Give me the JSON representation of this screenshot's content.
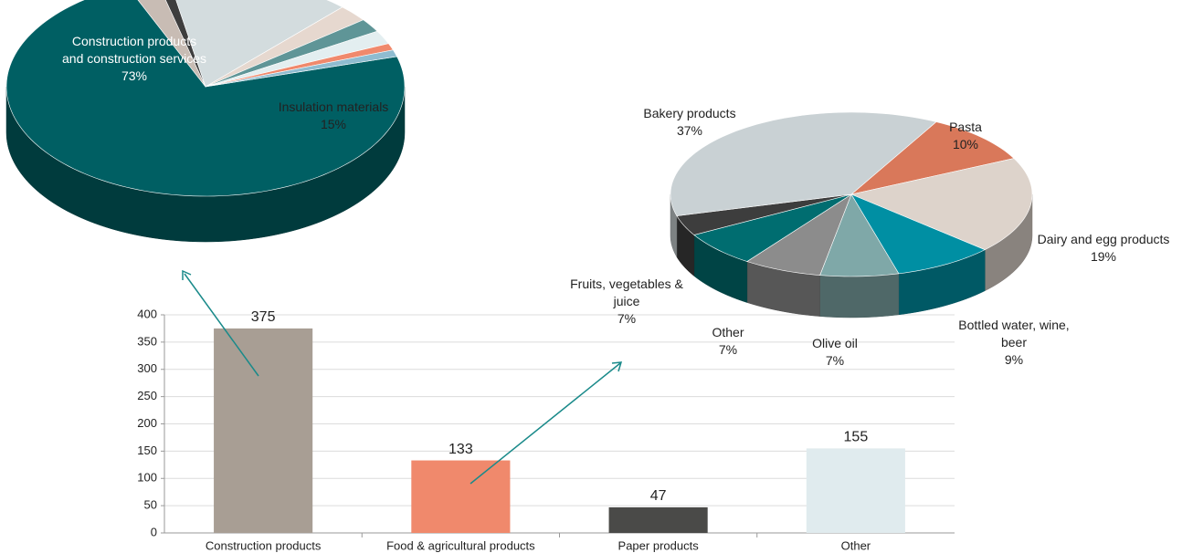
{
  "chart_data": [
    {
      "type": "bar",
      "categories": [
        "Construction products",
        "Food & agricultural products",
        "Paper products",
        "Other"
      ],
      "values": [
        375,
        133,
        47,
        155
      ],
      "colors": [
        "#a89e94",
        "#f0896c",
        "#4a4a48",
        "#e0ebee"
      ],
      "ylim": [
        0,
        400
      ],
      "yticks": [
        0,
        50,
        100,
        150,
        200,
        250,
        300,
        350,
        400
      ],
      "grid": true
    },
    {
      "type": "pie3d",
      "categories": [
        "Construction products and construction services",
        null,
        null,
        "Insulation materials",
        null,
        null,
        null,
        null,
        null
      ],
      "values": [
        73,
        2.5,
        1,
        15,
        2.5,
        2,
        2,
        1,
        1
      ],
      "value_labels": [
        "73%",
        null,
        null,
        "15%",
        null,
        null,
        null,
        null,
        null
      ],
      "colors": [
        "#005f63",
        "#c8bcb4",
        "#3e3e3e",
        "#d3dcde",
        "#e6d8cf",
        "#5f9597",
        "#e3eef0",
        "#f0896c",
        "#8fbcd0"
      ]
    },
    {
      "type": "pie3d",
      "categories": [
        "Pasta",
        "Dairy and egg products",
        "Bottled water, wine, beer",
        "Olive oil",
        "Other",
        "Fruits, vegetables & juice",
        null,
        "Bakery products"
      ],
      "values": [
        10,
        19,
        9,
        7,
        7,
        7,
        4,
        37
      ],
      "value_labels": [
        "10%",
        "19%",
        "9%",
        "7%",
        "7%",
        "7%",
        null,
        "37%"
      ],
      "colors": [
        "#d9785a",
        "#ddd3cb",
        "#008fa3",
        "#7fa8a8",
        "#8c8c8c",
        "#006d70",
        "#3d3d3d",
        "#c9d1d4"
      ]
    }
  ]
}
